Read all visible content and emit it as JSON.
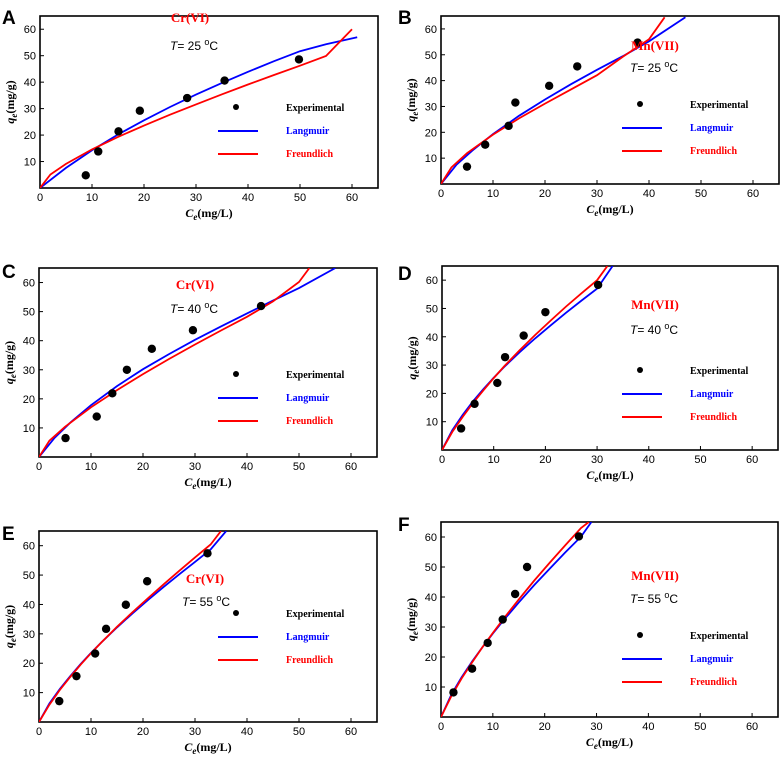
{
  "chart_data": [
    {
      "type": "scatter",
      "panel": "A",
      "title": "Cr(VI)",
      "temperature_label": {
        "var": "T",
        "eq": "= 25 ",
        "unit_sup": "o",
        "unit": "C"
      },
      "xlabel": {
        "sym": "C",
        "sub": "e",
        "unit": "(mg/L)"
      },
      "ylabel": {
        "sym": "q",
        "sub": "e",
        "unit": "(mg/g)"
      },
      "xlim": [
        0,
        65
      ],
      "ylim": [
        0,
        65
      ],
      "xticks": [
        0,
        10,
        20,
        30,
        40,
        50,
        60
      ],
      "yticks": [
        10,
        20,
        30,
        40,
        50,
        60
      ],
      "experimental": {
        "x": [
          8.8,
          11.2,
          15.1,
          19.2,
          28.3,
          35.5,
          49.8
        ],
        "y": [
          4.8,
          13.8,
          21.4,
          29.2,
          34.0,
          40.6,
          48.6
        ]
      },
      "langmuir": {
        "x": [
          0,
          5,
          10,
          15,
          20,
          25,
          30,
          35,
          40,
          45,
          50,
          55,
          61
        ],
        "y": [
          0,
          7.6,
          14.3,
          20.2,
          25.6,
          30.6,
          35.3,
          39.7,
          43.9,
          47.9,
          51.7,
          54.3,
          57.0
        ]
      },
      "freundlich": {
        "x": [
          0,
          2,
          5,
          10,
          15,
          20,
          25,
          30,
          35,
          40,
          45,
          50,
          55,
          60
        ],
        "y": [
          0,
          5.1,
          9.1,
          14.6,
          19.3,
          23.6,
          27.7,
          31.6,
          35.4,
          39.1,
          42.7,
          46.2,
          49.9,
          60.0
        ]
      },
      "legend": [
        {
          "label": "Experimental",
          "kind": "marker",
          "color": "#000000"
        },
        {
          "label": "Langmuir",
          "kind": "line",
          "color": "#0000ff"
        },
        {
          "label": "Freundlich",
          "kind": "line",
          "color": "#ff0000"
        }
      ]
    },
    {
      "type": "scatter",
      "panel": "B",
      "title": "Mn(VII)",
      "temperature_label": {
        "var": "T",
        "eq": "= 25 ",
        "unit_sup": "o",
        "unit": "C"
      },
      "xlabel": {
        "sym": "C",
        "sub": "e",
        "unit": "(mg/L)"
      },
      "ylabel": {
        "sym": "q",
        "sub": "e",
        "unit": "(mg/g)"
      },
      "xlim": [
        0,
        65
      ],
      "ylim": [
        0,
        65
      ],
      "xticks": [
        0,
        10,
        20,
        30,
        40,
        50,
        60
      ],
      "yticks": [
        10,
        20,
        30,
        40,
        50,
        60
      ],
      "experimental": {
        "x": [
          5.0,
          8.5,
          13.0,
          14.3,
          20.8,
          26.2,
          37.8
        ],
        "y": [
          6.7,
          15.2,
          22.5,
          31.5,
          38.0,
          45.5,
          54.7
        ]
      },
      "langmuir": {
        "x": [
          0,
          3,
          6,
          10,
          15,
          20,
          25,
          30,
          35,
          40,
          47
        ],
        "y": [
          0,
          7.5,
          12.9,
          19.3,
          26.4,
          32.7,
          38.6,
          44.2,
          49.5,
          55.2,
          64.5
        ]
      },
      "freundlich": {
        "x": [
          0,
          2,
          5,
          10,
          15,
          20,
          25,
          30,
          35,
          40,
          43
        ],
        "y": [
          0,
          6.4,
          11.9,
          19.1,
          25.4,
          31.1,
          36.6,
          42.1,
          49.3,
          56.0,
          64.5
        ]
      },
      "legend": [
        {
          "label": "Experimental",
          "kind": "marker",
          "color": "#000000"
        },
        {
          "label": "Langmuir",
          "kind": "line",
          "color": "#0000ff"
        },
        {
          "label": "Freundlich",
          "kind": "line",
          "color": "#ff0000"
        }
      ]
    },
    {
      "type": "scatter",
      "panel": "C",
      "title": "Cr(VI)",
      "temperature_label": {
        "var": "T",
        "eq": "= 40 ",
        "unit_sup": "o",
        "unit": "C"
      },
      "xlabel": {
        "sym": "C",
        "sub": "e",
        "unit": "(mg/L)"
      },
      "ylabel": {
        "sym": "q",
        "sub": "e",
        "unit": "(mg/g)"
      },
      "xlim": [
        0,
        65
      ],
      "ylim": [
        0,
        65
      ],
      "xticks": [
        0,
        10,
        20,
        30,
        40,
        50,
        60
      ],
      "yticks": [
        10,
        20,
        30,
        40,
        50,
        60
      ],
      "experimental": {
        "x": [
          5.1,
          11.1,
          14.1,
          16.9,
          21.7,
          29.6,
          42.7
        ],
        "y": [
          6.5,
          13.9,
          21.9,
          30.0,
          37.2,
          43.6,
          51.9
        ]
      },
      "langmuir": {
        "x": [
          0,
          3,
          6,
          10,
          15,
          20,
          25,
          30,
          35,
          40,
          45,
          50,
          57
        ],
        "y": [
          0,
          6.6,
          11.8,
          17.8,
          24.4,
          30.2,
          35.4,
          40.3,
          44.9,
          49.4,
          53.8,
          58.1,
          65.0
        ]
      },
      "freundlich": {
        "x": [
          0,
          2,
          5,
          10,
          15,
          20,
          25,
          30,
          35,
          40,
          45,
          50,
          52
        ],
        "y": [
          0,
          5.6,
          10.4,
          17.1,
          23.0,
          28.5,
          33.7,
          38.7,
          43.5,
          48.2,
          53.5,
          60.2,
          65.0
        ]
      },
      "legend": [
        {
          "label": "Experimental",
          "kind": "marker",
          "color": "#000000"
        },
        {
          "label": "Langmuir",
          "kind": "line",
          "color": "#0000ff"
        },
        {
          "label": "Freundlich",
          "kind": "line",
          "color": "#ff0000"
        }
      ]
    },
    {
      "type": "scatter",
      "panel": "D",
      "title": "Mn(VII)",
      "temperature_label": {
        "var": "T",
        "eq": "= 40 ",
        "unit_sup": "o",
        "unit": "C"
      },
      "xlabel": {
        "sym": "C",
        "sub": "e",
        "unit": "(mg/L)"
      },
      "ylabel": {
        "sym": "q",
        "sub": "e",
        "unit": "(mg/g)"
      },
      "xlim": [
        0,
        65
      ],
      "ylim": [
        0,
        65
      ],
      "xticks": [
        0,
        10,
        20,
        30,
        40,
        50,
        60
      ],
      "yticks": [
        10,
        20,
        30,
        40,
        50,
        60
      ],
      "experimental": {
        "x": [
          3.7,
          6.3,
          10.7,
          12.2,
          15.8,
          20.0,
          30.2
        ],
        "y": [
          7.6,
          16.3,
          23.7,
          32.8,
          40.4,
          48.7,
          58.3
        ]
      },
      "langmuir": {
        "x": [
          0,
          2,
          4,
          6,
          8,
          10,
          12,
          15,
          18,
          21,
          24,
          27,
          30,
          33
        ],
        "y": [
          0,
          7.0,
          12.4,
          17.2,
          21.5,
          25.5,
          29.3,
          34.5,
          39.4,
          44.0,
          48.5,
          52.8,
          57.0,
          65.0
        ]
      },
      "freundlich": {
        "x": [
          0,
          2,
          4,
          6,
          8,
          10,
          12,
          15,
          18,
          21,
          24,
          27,
          30,
          32
        ],
        "y": [
          0,
          6.4,
          11.7,
          16.6,
          21.1,
          25.4,
          29.5,
          35.2,
          40.6,
          45.7,
          50.7,
          55.4,
          60.0,
          65.0
        ]
      },
      "legend": [
        {
          "label": "Experimental",
          "kind": "marker",
          "color": "#000000"
        },
        {
          "label": "Langmuir",
          "kind": "line",
          "color": "#0000ff"
        },
        {
          "label": "Freundlich",
          "kind": "line",
          "color": "#ff0000"
        }
      ]
    },
    {
      "type": "scatter",
      "panel": "E",
      "title": "Cr(VI)",
      "temperature_label": {
        "var": "T",
        "eq": "= 55 ",
        "unit_sup": "o",
        "unit": "C"
      },
      "xlabel": {
        "sym": "C",
        "sub": "e",
        "unit": "(mg/L)"
      },
      "ylabel": {
        "sym": "q",
        "sub": "e",
        "unit": "(mg/g)"
      },
      "xlim": [
        0,
        65
      ],
      "ylim": [
        0,
        65
      ],
      "xticks": [
        0,
        10,
        20,
        30,
        40,
        50,
        60
      ],
      "yticks": [
        10,
        20,
        30,
        40,
        50,
        60
      ],
      "experimental": {
        "x": [
          3.9,
          7.2,
          10.8,
          12.9,
          16.7,
          20.8,
          32.4
        ],
        "y": [
          7.1,
          15.6,
          23.3,
          31.7,
          39.9,
          47.9,
          57.4
        ]
      },
      "langmuir": {
        "x": [
          0,
          2,
          4,
          6,
          8,
          10,
          12,
          15,
          18,
          21,
          24,
          27,
          30,
          33,
          36
        ],
        "y": [
          0,
          6.3,
          11.2,
          15.6,
          19.7,
          23.5,
          27.1,
          32.2,
          37.0,
          41.6,
          46.0,
          50.3,
          54.5,
          58.7,
          65.0
        ]
      },
      "freundlich": {
        "x": [
          0,
          2,
          4,
          6,
          8,
          10,
          12,
          15,
          18,
          21,
          24,
          27,
          30,
          33,
          35
        ],
        "y": [
          0,
          5.9,
          10.9,
          15.3,
          19.5,
          23.4,
          27.1,
          32.4,
          37.4,
          42.2,
          46.9,
          51.5,
          56.0,
          60.4,
          65.0
        ]
      },
      "legend": [
        {
          "label": "Experimental",
          "kind": "marker",
          "color": "#000000"
        },
        {
          "label": "Langmuir",
          "kind": "line",
          "color": "#0000ff"
        },
        {
          "label": "Freundlich",
          "kind": "line",
          "color": "#ff0000"
        }
      ]
    },
    {
      "type": "scatter",
      "panel": "F",
      "title": "Mn(VII)",
      "temperature_label": {
        "var": "T",
        "eq": "= 55 ",
        "unit_sup": "o",
        "unit": "C"
      },
      "xlabel": {
        "sym": "C",
        "sub": "e",
        "unit": "(mg/L)"
      },
      "ylabel": {
        "sym": "q",
        "sub": "e",
        "unit": "(mg/g)"
      },
      "xlim": [
        0,
        65
      ],
      "ylim": [
        0,
        65
      ],
      "xticks": [
        0,
        10,
        20,
        30,
        40,
        50,
        60
      ],
      "yticks": [
        10,
        20,
        30,
        40,
        50,
        60
      ],
      "experimental": {
        "x": [
          2.4,
          6.0,
          9.0,
          11.9,
          14.3,
          16.6,
          26.6
        ],
        "y": [
          8.2,
          16.1,
          24.7,
          32.5,
          41.0,
          50.0,
          60.2
        ]
      },
      "langmuir": {
        "x": [
          0,
          2,
          4,
          6,
          8,
          10,
          12,
          15,
          18,
          21,
          24,
          27,
          29
        ],
        "y": [
          0,
          7.5,
          13.3,
          18.5,
          23.3,
          27.8,
          32.1,
          38.2,
          44.0,
          49.5,
          54.9,
          60.1,
          65.0
        ]
      },
      "freundlich": {
        "x": [
          0,
          2,
          4,
          6,
          8,
          10,
          12,
          15,
          18,
          21,
          24,
          27,
          28.5
        ],
        "y": [
          0,
          7.0,
          12.9,
          18.2,
          23.3,
          28.0,
          32.6,
          39.2,
          45.5,
          51.5,
          57.3,
          63.0,
          65.0
        ]
      },
      "legend": [
        {
          "label": "Experimental",
          "kind": "marker",
          "color": "#000000"
        },
        {
          "label": "Langmuir",
          "kind": "line",
          "color": "#0000ff"
        },
        {
          "label": "Freundlich",
          "kind": "line",
          "color": "#ff0000"
        }
      ]
    }
  ]
}
